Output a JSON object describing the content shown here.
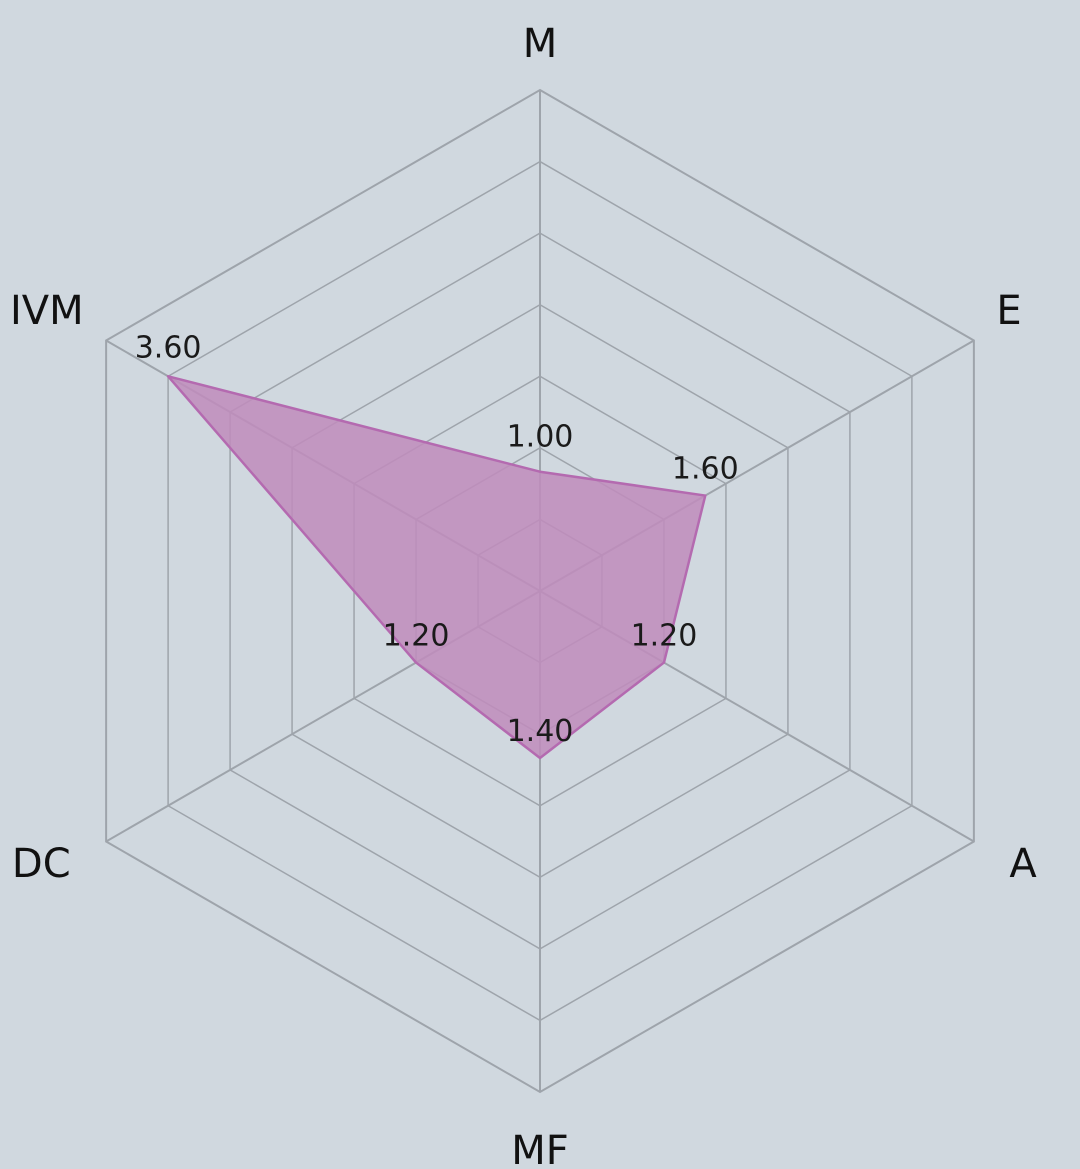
{
  "chart_data": {
    "type": "radar",
    "axes": [
      "M",
      "E",
      "A",
      "MF",
      "DC",
      "IVM"
    ],
    "series": [
      {
        "values": [
          1.0,
          1.6,
          1.2,
          1.4,
          1.2,
          3.6
        ],
        "labels": [
          "1.00",
          "1.60",
          "1.20",
          "1.40",
          "1.20",
          "3.60"
        ]
      }
    ],
    "max": 4.2,
    "rings": 7,
    "grid": true,
    "colors": {
      "background": "#d0d8df",
      "grid": "#9ea4ab",
      "fill": "#c08cbc",
      "stroke": "#b46ab0"
    }
  }
}
